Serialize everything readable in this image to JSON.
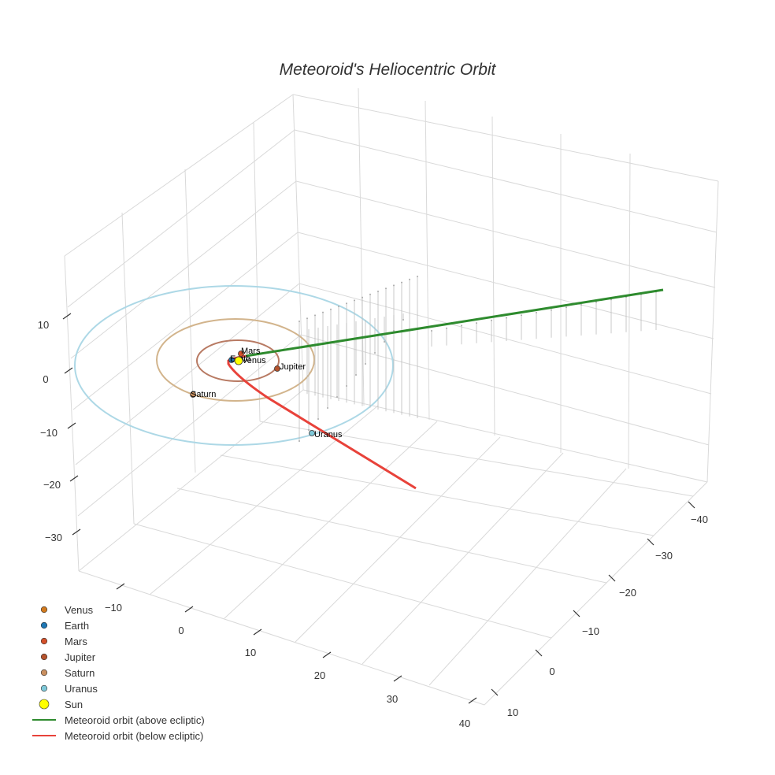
{
  "chart_data": {
    "type": "scatter3d",
    "title": "Meteoroid's Heliocentric Orbit",
    "axes": {
      "x_ticks": [
        "−10",
        "0",
        "10",
        "20",
        "30",
        "40"
      ],
      "y_ticks": [
        "−40",
        "−30",
        "−20",
        "−10",
        "0",
        "10"
      ],
      "z_ticks": [
        "10",
        "0",
        "−10",
        "−20",
        "−30"
      ],
      "grid": true
    },
    "planets": [
      {
        "name": "Venus",
        "color": "#d17a1e"
      },
      {
        "name": "Earth",
        "color": "#1f77b4"
      },
      {
        "name": "Mars",
        "color": "#d4502a"
      },
      {
        "name": "Jupiter",
        "color": "#b5532d"
      },
      {
        "name": "Saturn",
        "color": "#c98f5f"
      },
      {
        "name": "Uranus",
        "color": "#7ec8d8"
      }
    ],
    "sun": {
      "name": "Sun",
      "color": "#ffff00"
    },
    "orbit_colors": {
      "Jupiter": "#b87a63",
      "Saturn": "#d2b48c",
      "Uranus": "#add8e6"
    },
    "meteoroid": [
      {
        "name": "Meteoroid orbit (above ecliptic)",
        "color": "#2e8b2e"
      },
      {
        "name": "Meteoroid orbit (below ecliptic)",
        "color": "#e8423a"
      }
    ],
    "legend_position": "bottom-left"
  }
}
